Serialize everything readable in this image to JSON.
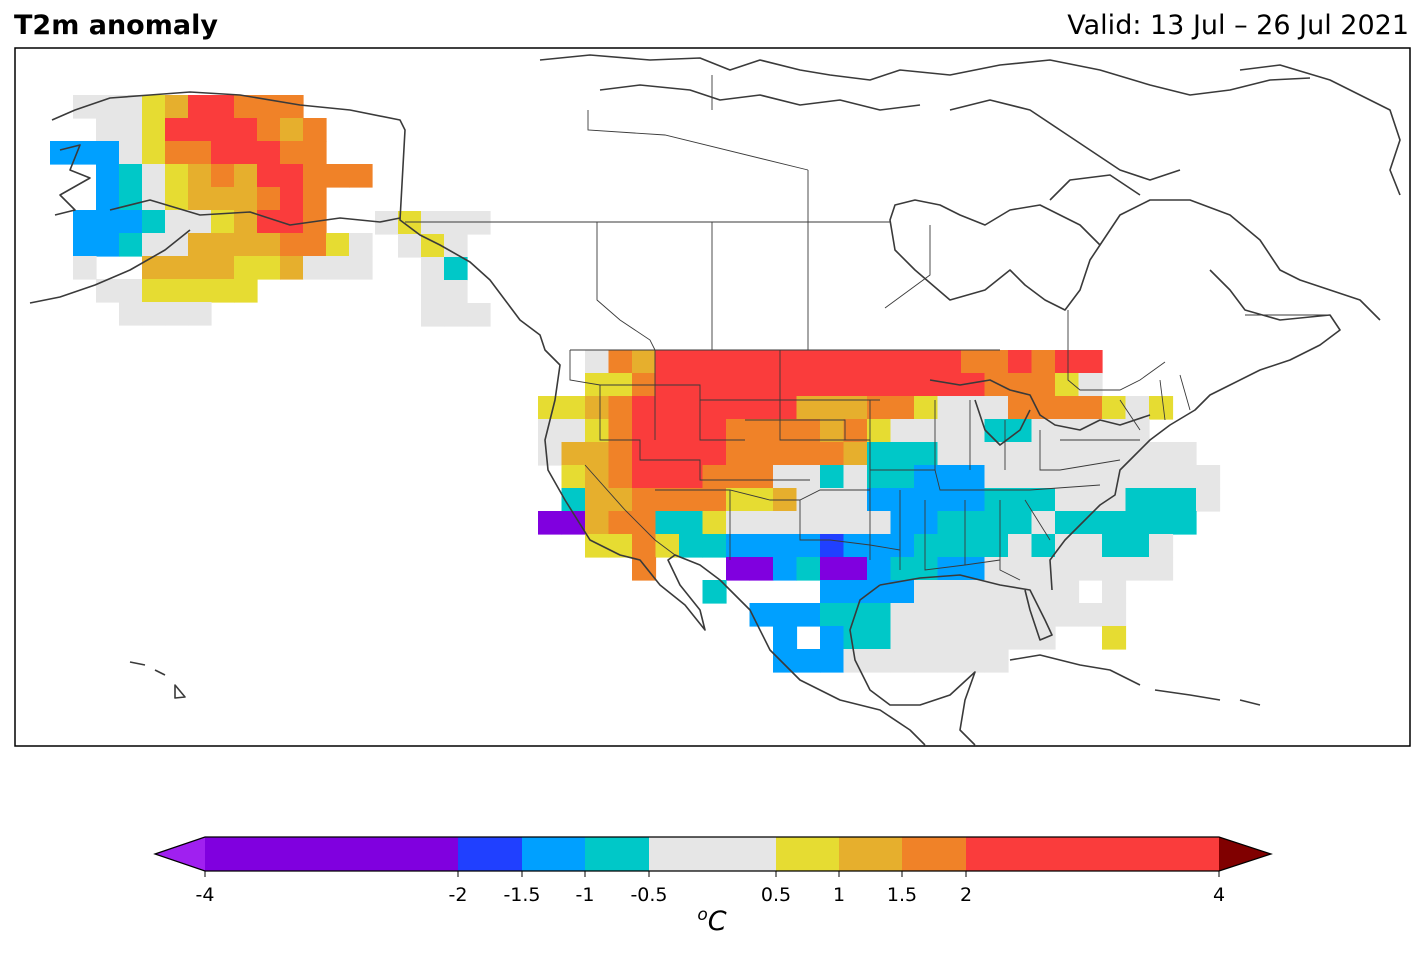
{
  "header": {
    "title": "T2m anomaly",
    "valid": "Valid: 13 Jul – 26 Jul 2021"
  },
  "colorbar": {
    "unit_super": "o",
    "unit_main": "C",
    "ticks": [
      "-4",
      "-2",
      "-1.5",
      "-1",
      "-0.5",
      "0.5",
      "1",
      "1.5",
      "2",
      "4"
    ],
    "tick_values": [
      -4,
      -2,
      -1.5,
      -1,
      -0.5,
      0.5,
      1,
      1.5,
      2,
      4
    ],
    "bins": [
      {
        "lo": -4,
        "hi": -2,
        "color": "#8000df"
      },
      {
        "lo": -2,
        "hi": -1.5,
        "color": "#2040ff"
      },
      {
        "lo": -1.5,
        "hi": -1,
        "color": "#00a0ff"
      },
      {
        "lo": -1,
        "hi": -0.5,
        "color": "#00c8c8"
      },
      {
        "lo": -0.5,
        "hi": 0.5,
        "color": "#e6e6e6"
      },
      {
        "lo": 0.5,
        "hi": 1,
        "color": "#e6dc32"
      },
      {
        "lo": 1,
        "hi": 1.5,
        "color": "#e6af2d"
      },
      {
        "lo": 1.5,
        "hi": 2,
        "color": "#f08228"
      },
      {
        "lo": 2,
        "hi": 4,
        "color": "#fa3c3c"
      }
    ],
    "extend_low_color": "#a020f0",
    "extend_high_color": "#800000"
  }
}
